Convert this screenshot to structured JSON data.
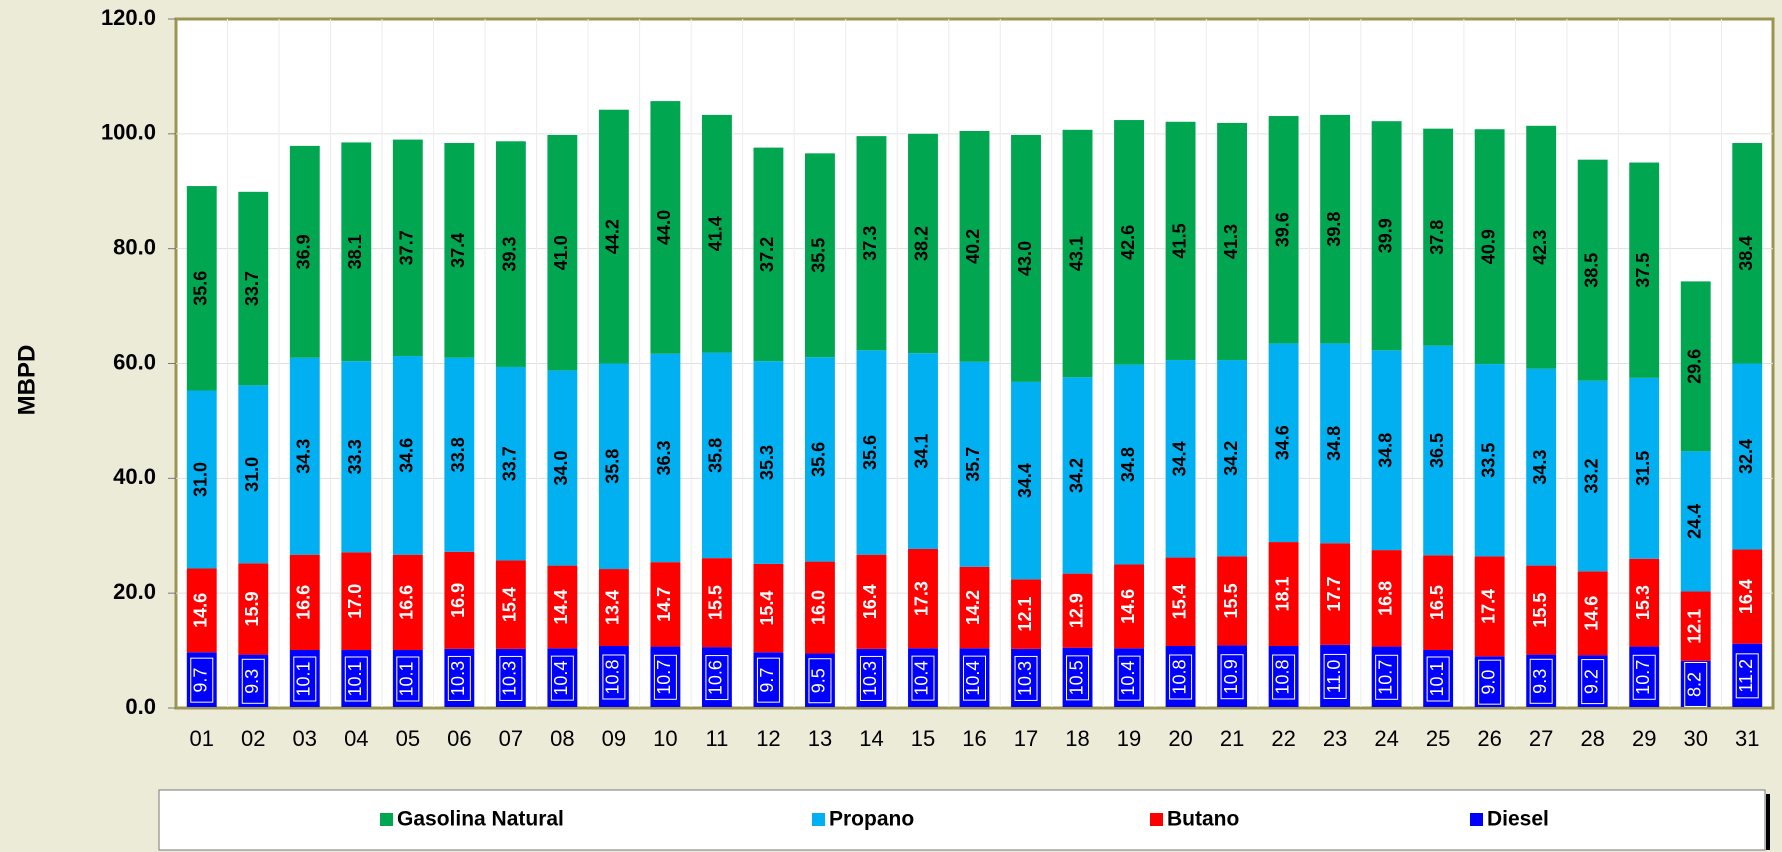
{
  "chart_data": {
    "type": "stacked_bar",
    "y_label": "MBPD",
    "categories": [
      "01",
      "02",
      "03",
      "04",
      "05",
      "06",
      "07",
      "08",
      "09",
      "10",
      "11",
      "12",
      "13",
      "14",
      "15",
      "16",
      "17",
      "18",
      "19",
      "20",
      "21",
      "22",
      "23",
      "24",
      "25",
      "26",
      "27",
      "28",
      "29",
      "30",
      "31"
    ],
    "ylim": [
      0,
      120
    ],
    "yticks": [
      {
        "value": 0,
        "label": "0.0"
      },
      {
        "value": 20,
        "label": "20.0"
      },
      {
        "value": 40,
        "label": "40.0"
      },
      {
        "value": 60,
        "label": "60.0"
      },
      {
        "value": 80,
        "label": "80.0"
      },
      {
        "value": 100,
        "label": "100.0"
      },
      {
        "value": 120,
        "label": "120.0"
      }
    ],
    "grid": true,
    "legend_position": "bottom",
    "series": [
      {
        "name": "Diesel",
        "color": "#0000ff",
        "values": [
          9.7,
          9.3,
          10.1,
          10.1,
          10.1,
          10.3,
          10.3,
          10.4,
          10.8,
          10.7,
          10.6,
          9.7,
          9.5,
          10.3,
          10.4,
          10.4,
          10.3,
          10.5,
          10.4,
          10.8,
          10.9,
          10.8,
          11.0,
          10.7,
          10.1,
          9.0,
          9.3,
          9.2,
          10.7,
          8.2,
          11.2
        ],
        "value_labels": [
          "9.7",
          "9.3",
          "10.1",
          "10.1",
          "10.1",
          "10.3",
          "10.3",
          "10.4",
          "10.8",
          "10.7",
          "10.6",
          "9.7",
          "9.5",
          "10.3",
          "10.4",
          "10.4",
          "10.3",
          "10.5",
          "10.4",
          "10.8",
          "10.9",
          "10.8",
          "11.0",
          "10.7",
          "10.1",
          "9.0",
          "9.3",
          "9.2",
          "10.7",
          "8.2",
          "11.2"
        ]
      },
      {
        "name": "Butano",
        "color": "#ff0000",
        "values": [
          14.6,
          15.9,
          16.6,
          17.0,
          16.6,
          16.9,
          15.4,
          14.4,
          13.4,
          14.7,
          15.5,
          15.4,
          16.0,
          16.4,
          17.3,
          14.2,
          12.1,
          12.9,
          14.6,
          15.4,
          15.5,
          18.1,
          17.7,
          16.8,
          16.5,
          17.4,
          15.5,
          14.6,
          15.3,
          12.1,
          16.4
        ],
        "value_labels": [
          "14.6",
          "15.9",
          "16.6",
          "17.0",
          "16.6",
          "16.9",
          "15.4",
          "14.4",
          "13.4",
          "14.7",
          "15.5",
          "15.4",
          "16.0",
          "16.4",
          "17.3",
          "14.2",
          "12.1",
          "12.9",
          "14.6",
          "15.4",
          "15.5",
          "18.1",
          "17.7",
          "16.8",
          "16.5",
          "17.4",
          "15.5",
          "14.6",
          "15.3",
          "12.1",
          "16.4"
        ]
      },
      {
        "name": "Propano",
        "color": "#00b0f0",
        "values": [
          31.0,
          31.0,
          34.3,
          33.3,
          34.6,
          33.8,
          33.7,
          34.0,
          35.8,
          36.3,
          35.8,
          35.3,
          35.6,
          35.6,
          34.1,
          35.7,
          34.4,
          34.2,
          34.8,
          34.4,
          34.2,
          34.6,
          34.8,
          34.8,
          36.5,
          33.5,
          34.3,
          33.2,
          31.5,
          24.4,
          32.4
        ],
        "value_labels": [
          "31.0",
          "31.0",
          "34.3",
          "33.3",
          "34.6",
          "33.8",
          "33.7",
          "34.0",
          "35.8",
          "36.3",
          "35.8",
          "35.3",
          "35.6",
          "35.6",
          "34.1",
          "35.7",
          "34.4",
          "34.2",
          "34.8",
          "34.4",
          "34.2",
          "34.6",
          "34.8",
          "34.8",
          "36.5",
          "33.5",
          "34.3",
          "33.2",
          "31.5",
          "24.4",
          "32.4"
        ]
      },
      {
        "name": "Gasolina Natural",
        "color": "#00a650",
        "values": [
          35.6,
          33.7,
          36.9,
          38.1,
          37.7,
          37.4,
          39.3,
          41.0,
          44.2,
          44.0,
          41.4,
          37.2,
          35.5,
          37.3,
          38.2,
          40.2,
          43.0,
          43.1,
          42.6,
          41.5,
          41.3,
          39.6,
          39.8,
          39.9,
          37.8,
          40.9,
          42.3,
          38.5,
          37.5,
          29.6,
          38.4
        ],
        "value_labels": [
          "35.6",
          "33.7",
          "36.9",
          "38.1",
          "37.7",
          "37.4",
          "39.3",
          "41.0",
          "44.2",
          "44.0",
          "41.4",
          "37.2",
          "35.5",
          "37.3",
          "38.2",
          "40.2",
          "43.0",
          "43.1",
          "42.6",
          "41.5",
          "41.3",
          "39.6",
          "39.8",
          "39.9",
          "37.8",
          "40.9",
          "42.3",
          "38.5",
          "37.5",
          "29.6",
          "38.4"
        ]
      }
    ]
  }
}
